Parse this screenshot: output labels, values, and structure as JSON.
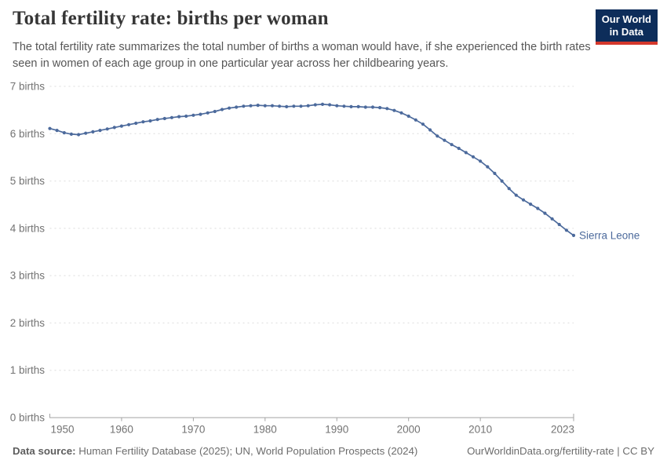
{
  "header": {
    "title": "Total fertility rate: births per woman",
    "subtitle": "The total fertility rate summarizes the total number of births a woman would have, if she experienced the birth rates seen in women of each age group in one particular year across her childbearing years.",
    "logo": {
      "line1": "Our World",
      "line2": "in Data",
      "bg_color": "#0d2d5a",
      "accent_color": "#d4382c"
    }
  },
  "chart_data": {
    "type": "line",
    "title": "Total fertility rate: births per woman",
    "xlabel": "",
    "ylabel": "births",
    "x_range": [
      1950,
      2023
    ],
    "y_range": [
      0,
      7
    ],
    "grid": "horizontal-dashed",
    "grid_color": "#dcdcdc",
    "axis_color": "#a3a3a3",
    "legend_position": "end-of-line-label",
    "y_ticks": [
      {
        "value": 0,
        "label": "0 births"
      },
      {
        "value": 1,
        "label": "1 births"
      },
      {
        "value": 2,
        "label": "2 births"
      },
      {
        "value": 3,
        "label": "3 births"
      },
      {
        "value": 4,
        "label": "4 births"
      },
      {
        "value": 5,
        "label": "5 births"
      },
      {
        "value": 6,
        "label": "6 births"
      },
      {
        "value": 7,
        "label": "7 births"
      }
    ],
    "x_ticks": [
      {
        "value": 1950,
        "label": "1950"
      },
      {
        "value": 1960,
        "label": "1960"
      },
      {
        "value": 1970,
        "label": "1970"
      },
      {
        "value": 1980,
        "label": "1980"
      },
      {
        "value": 1990,
        "label": "1990"
      },
      {
        "value": 2000,
        "label": "2000"
      },
      {
        "value": 2010,
        "label": "2010"
      },
      {
        "value": 2023,
        "label": "2023"
      }
    ],
    "series": [
      {
        "name": "Sierra Leone",
        "color": "#4C6A9C",
        "x": [
          1950,
          1951,
          1952,
          1953,
          1954,
          1955,
          1956,
          1957,
          1958,
          1959,
          1960,
          1961,
          1962,
          1963,
          1964,
          1965,
          1966,
          1967,
          1968,
          1969,
          1970,
          1971,
          1972,
          1973,
          1974,
          1975,
          1976,
          1977,
          1978,
          1979,
          1980,
          1981,
          1982,
          1983,
          1984,
          1985,
          1986,
          1987,
          1988,
          1989,
          1990,
          1991,
          1992,
          1993,
          1994,
          1995,
          1996,
          1997,
          1998,
          1999,
          2000,
          2001,
          2002,
          2003,
          2004,
          2005,
          2006,
          2007,
          2008,
          2009,
          2010,
          2011,
          2012,
          2013,
          2014,
          2015,
          2016,
          2017,
          2018,
          2019,
          2020,
          2021,
          2022,
          2023
        ],
        "values": [
          6.11,
          6.07,
          6.02,
          5.99,
          5.98,
          6.01,
          6.04,
          6.07,
          6.1,
          6.13,
          6.16,
          6.19,
          6.22,
          6.25,
          6.27,
          6.3,
          6.32,
          6.34,
          6.36,
          6.37,
          6.39,
          6.41,
          6.44,
          6.47,
          6.51,
          6.54,
          6.56,
          6.58,
          6.59,
          6.6,
          6.59,
          6.59,
          6.58,
          6.57,
          6.58,
          6.58,
          6.59,
          6.61,
          6.62,
          6.61,
          6.59,
          6.58,
          6.57,
          6.57,
          6.56,
          6.56,
          6.55,
          6.53,
          6.49,
          6.44,
          6.37,
          6.29,
          6.2,
          6.08,
          5.95,
          5.86,
          5.77,
          5.69,
          5.6,
          5.51,
          5.42,
          5.3,
          5.16,
          5.0,
          4.84,
          4.7,
          4.6,
          4.51,
          4.42,
          4.32,
          4.2,
          4.08,
          3.96,
          3.85
        ]
      }
    ]
  },
  "footer": {
    "source_label": "Data source:",
    "source_text": " Human Fertility Database (2025); UN, World Population Prospects (2024)",
    "credit_link": "OurWorldinData.org/fertility-rate",
    "credit_separator": " | ",
    "credit_license": "CC BY"
  }
}
